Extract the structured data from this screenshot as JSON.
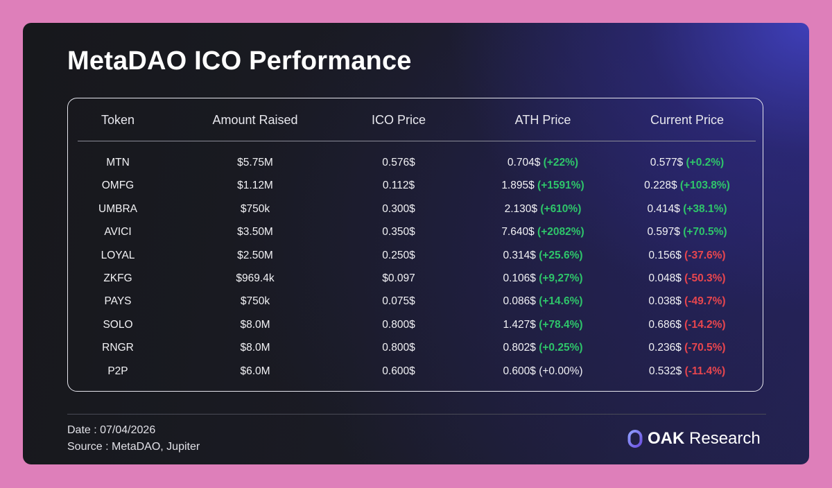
{
  "title": "MetaDAO ICO Performance",
  "colors": {
    "positive": "#2ec56a",
    "negative": "#e8464e",
    "neutral": "#f2f2f5"
  },
  "table": {
    "headers": [
      "Token",
      "Amount Raised",
      "ICO Price",
      "ATH Price",
      "Current Price"
    ],
    "rows": [
      {
        "token": "MTN",
        "raised": "$5.75M",
        "ico": "0.576$",
        "ath": "0.704$",
        "ath_change": "(+22%)",
        "ath_dir": "pos",
        "current": "0.577$",
        "current_change": "(+0.2%)",
        "current_dir": "pos"
      },
      {
        "token": "OMFG",
        "raised": "$1.12M",
        "ico": "0.112$",
        "ath": "1.895$",
        "ath_change": "(+1591%)",
        "ath_dir": "pos",
        "current": "0.228$",
        "current_change": "(+103.8%)",
        "current_dir": "pos"
      },
      {
        "token": "UMBRA",
        "raised": "$750k",
        "ico": "0.300$",
        "ath": "2.130$",
        "ath_change": "(+610%)",
        "ath_dir": "pos",
        "current": "0.414$",
        "current_change": "(+38.1%)",
        "current_dir": "pos"
      },
      {
        "token": "AVICI",
        "raised": "$3.50M",
        "ico": "0.350$",
        "ath": "7.640$",
        "ath_change": "(+2082%)",
        "ath_dir": "pos",
        "current": "0.597$",
        "current_change": "(+70.5%)",
        "current_dir": "pos"
      },
      {
        "token": "LOYAL",
        "raised": "$2.50M",
        "ico": "0.250$",
        "ath": "0.314$",
        "ath_change": "(+25.6%)",
        "ath_dir": "pos",
        "current": "0.156$",
        "current_change": "(-37.6%)",
        "current_dir": "neg"
      },
      {
        "token": "ZKFG",
        "raised": "$969.4k",
        "ico": "$0.097",
        "ath": "0.106$",
        "ath_change": "(+9,27%)",
        "ath_dir": "pos",
        "current": "0.048$",
        "current_change": "(-50.3%)",
        "current_dir": "neg"
      },
      {
        "token": "PAYS",
        "raised": "$750k",
        "ico": "0.075$",
        "ath": "0.086$",
        "ath_change": "(+14.6%)",
        "ath_dir": "pos",
        "current": "0.038$",
        "current_change": "(-49.7%)",
        "current_dir": "neg"
      },
      {
        "token": "SOLO",
        "raised": "$8.0M",
        "ico": "0.800$",
        "ath": "1.427$",
        "ath_change": "(+78.4%)",
        "ath_dir": "pos",
        "current": "0.686$",
        "current_change": "(-14.2%)",
        "current_dir": "neg"
      },
      {
        "token": "RNGR",
        "raised": "$8.0M",
        "ico": "0.800$",
        "ath": "0.802$",
        "ath_change": "(+0.25%)",
        "ath_dir": "pos",
        "current": "0.236$",
        "current_change": "(-70.5%)",
        "current_dir": "neg"
      },
      {
        "token": "P2P",
        "raised": "$6.0M",
        "ico": "0.600$",
        "ath": "0.600$",
        "ath_change": "(+0.00%)",
        "ath_dir": "neu",
        "current": "0.532$",
        "current_change": "(-11.4%)",
        "current_dir": "neg"
      }
    ]
  },
  "footer": {
    "date": "Date : 07/04/2026",
    "source": "Source : MetaDAO, Jupiter"
  },
  "logo": {
    "icon": "oak-logo-icon",
    "name_bold": "OAK",
    "name_rest": " Research"
  }
}
